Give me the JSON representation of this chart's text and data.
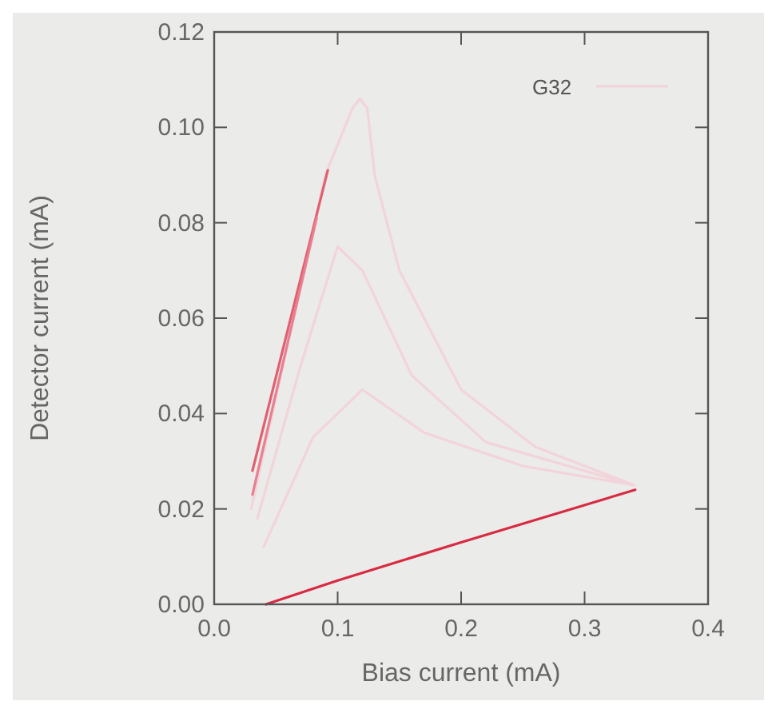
{
  "chart_data": {
    "type": "line",
    "xlabel": "Bias current (mA)",
    "ylabel": "Detector current (mA)",
    "xlim": [
      0,
      0.4
    ],
    "ylim": [
      0,
      0.12
    ],
    "xticks": [
      {
        "value": 0,
        "label": "0.0"
      },
      {
        "value": 0.1,
        "label": "0.1"
      },
      {
        "value": 0.2,
        "label": "0.2"
      },
      {
        "value": 0.3,
        "label": "0.3"
      },
      {
        "value": 0.4,
        "label": "0.4"
      }
    ],
    "yticks": [
      {
        "value": 0,
        "label": "0.00"
      },
      {
        "value": 0.02,
        "label": "0.02"
      },
      {
        "value": 0.04,
        "label": "0.04"
      },
      {
        "value": 0.06,
        "label": "0.06"
      },
      {
        "value": 0.08,
        "label": "0.08"
      },
      {
        "value": 0.1,
        "label": "0.10"
      },
      {
        "value": 0.12,
        "label": "0.12"
      }
    ],
    "grid": false,
    "legend": "top right",
    "series": [
      {
        "name": "G32",
        "color": "#f2d4da",
        "x": [
          0.03,
          0.06,
          0.09,
          0.112,
          0.118,
          0.124,
          0.13,
          0.15,
          0.2,
          0.26,
          0.34
        ],
        "values": [
          0.02,
          0.055,
          0.09,
          0.104,
          0.106,
          0.104,
          0.09,
          0.07,
          0.045,
          0.033,
          0.025
        ]
      },
      {
        "color": "#f2d4da",
        "x": [
          0.035,
          0.07,
          0.1,
          0.12,
          0.16,
          0.22,
          0.34
        ],
        "values": [
          0.018,
          0.05,
          0.075,
          0.07,
          0.048,
          0.034,
          0.025
        ]
      },
      {
        "color": "#f2d4da",
        "x": [
          0.04,
          0.08,
          0.12,
          0.17,
          0.25,
          0.34
        ],
        "values": [
          0.012,
          0.035,
          0.045,
          0.036,
          0.029,
          0.025
        ]
      },
      {
        "color": "#e06070",
        "x": [
          0.031,
          0.092
        ],
        "values": [
          0.028,
          0.091
        ]
      },
      {
        "color": "#e88090",
        "x": [
          0.031,
          0.083
        ],
        "values": [
          0.023,
          0.081
        ]
      },
      {
        "color": "#d82a40",
        "x": [
          0.042,
          0.1,
          0.2,
          0.341
        ],
        "values": [
          0,
          0.005,
          0.013,
          0.024
        ]
      }
    ]
  }
}
